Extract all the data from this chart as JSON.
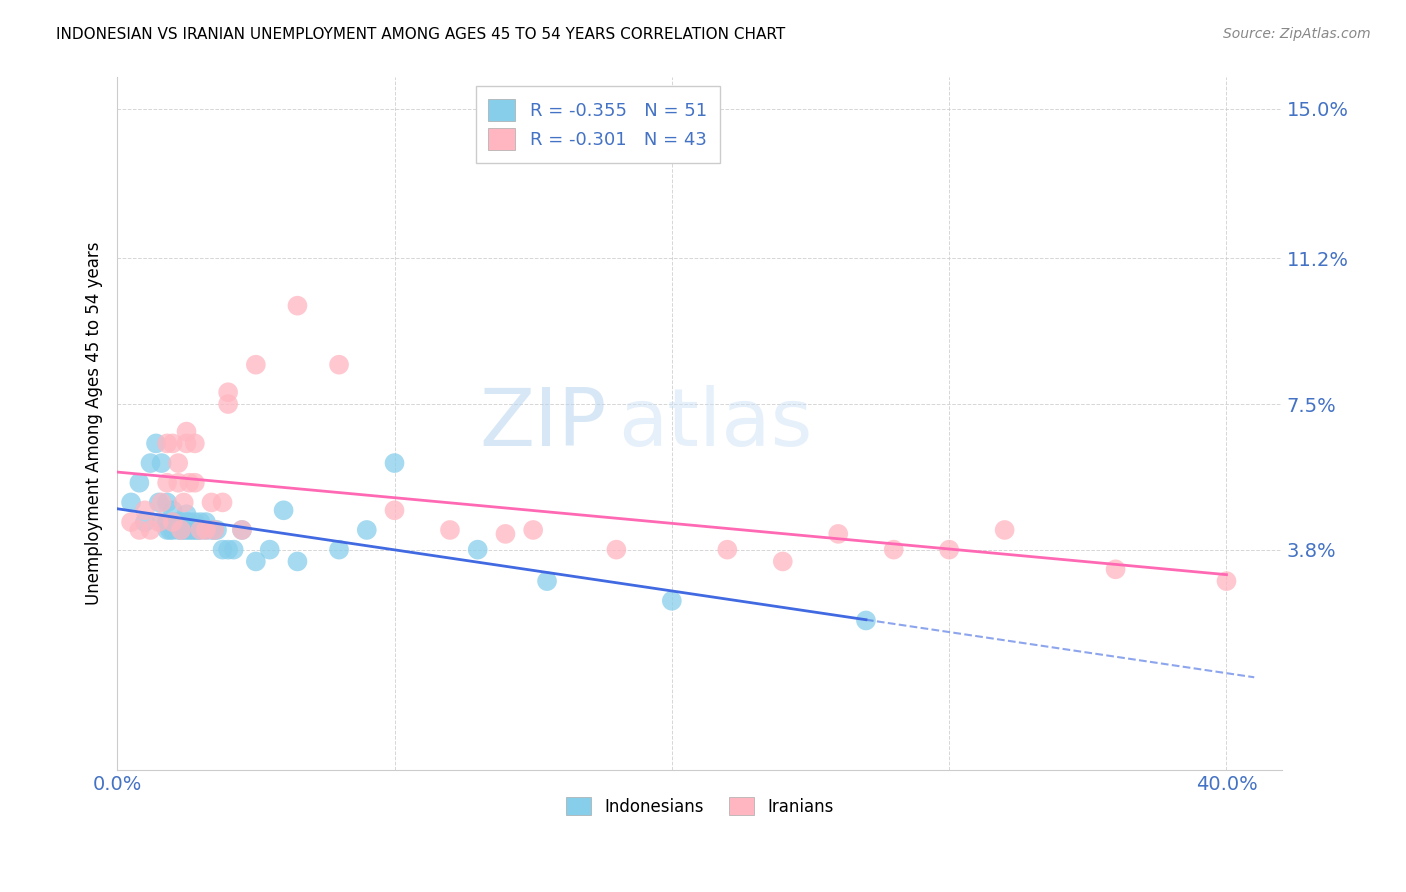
{
  "title": "INDONESIAN VS IRANIAN UNEMPLOYMENT AMONG AGES 45 TO 54 YEARS CORRELATION CHART",
  "source": "Source: ZipAtlas.com",
  "ylabel": "Unemployment Among Ages 45 to 54 years",
  "xlim": [
    0.0,
    0.42
  ],
  "ylim": [
    -0.018,
    0.158
  ],
  "xtick_labels": [
    "0.0%",
    "40.0%"
  ],
  "xtick_vals": [
    0.0,
    0.4
  ],
  "ytick_labels": [
    "3.8%",
    "7.5%",
    "11.2%",
    "15.0%"
  ],
  "ytick_vals": [
    0.038,
    0.075,
    0.112,
    0.15
  ],
  "legend_r_indo": "-0.355",
  "legend_n_indo": "51",
  "legend_r_iran": "-0.301",
  "legend_n_iran": "43",
  "color_indonesian": "#87CEEB",
  "color_iranian": "#FFB6C1",
  "color_line_indonesian": "#4169E1",
  "color_line_iranian": "#FF69B4",
  "color_axis": "#4472C4",
  "watermark_zip": "ZIP",
  "watermark_atlas": "atlas",
  "indonesian_x": [
    0.005,
    0.008,
    0.01,
    0.012,
    0.014,
    0.015,
    0.016,
    0.016,
    0.018,
    0.018,
    0.018,
    0.019,
    0.02,
    0.02,
    0.02,
    0.022,
    0.022,
    0.023,
    0.023,
    0.024,
    0.025,
    0.025,
    0.025,
    0.026,
    0.026,
    0.027,
    0.028,
    0.028,
    0.029,
    0.03,
    0.03,
    0.032,
    0.032,
    0.034,
    0.035,
    0.036,
    0.038,
    0.04,
    0.042,
    0.045,
    0.05,
    0.055,
    0.06,
    0.065,
    0.08,
    0.09,
    0.1,
    0.13,
    0.155,
    0.2,
    0.27
  ],
  "indonesian_y": [
    0.05,
    0.055,
    0.045,
    0.06,
    0.065,
    0.05,
    0.045,
    0.06,
    0.043,
    0.045,
    0.05,
    0.043,
    0.043,
    0.045,
    0.048,
    0.043,
    0.045,
    0.043,
    0.045,
    0.043,
    0.043,
    0.045,
    0.047,
    0.043,
    0.045,
    0.043,
    0.043,
    0.045,
    0.043,
    0.043,
    0.045,
    0.043,
    0.045,
    0.043,
    0.043,
    0.043,
    0.038,
    0.038,
    0.038,
    0.043,
    0.035,
    0.038,
    0.048,
    0.035,
    0.038,
    0.043,
    0.06,
    0.038,
    0.03,
    0.025,
    0.02
  ],
  "iranian_x": [
    0.005,
    0.008,
    0.01,
    0.012,
    0.015,
    0.016,
    0.018,
    0.018,
    0.02,
    0.02,
    0.022,
    0.022,
    0.023,
    0.024,
    0.025,
    0.025,
    0.026,
    0.028,
    0.028,
    0.03,
    0.032,
    0.034,
    0.035,
    0.038,
    0.04,
    0.04,
    0.045,
    0.05,
    0.065,
    0.08,
    0.1,
    0.12,
    0.14,
    0.15,
    0.18,
    0.22,
    0.24,
    0.26,
    0.28,
    0.3,
    0.32,
    0.36,
    0.4
  ],
  "iranian_y": [
    0.045,
    0.043,
    0.048,
    0.043,
    0.045,
    0.05,
    0.055,
    0.065,
    0.045,
    0.065,
    0.055,
    0.06,
    0.043,
    0.05,
    0.065,
    0.068,
    0.055,
    0.065,
    0.055,
    0.043,
    0.043,
    0.05,
    0.043,
    0.05,
    0.075,
    0.078,
    0.043,
    0.085,
    0.1,
    0.085,
    0.048,
    0.043,
    0.042,
    0.043,
    0.038,
    0.038,
    0.035,
    0.042,
    0.038,
    0.038,
    0.043,
    0.033,
    0.03
  ]
}
